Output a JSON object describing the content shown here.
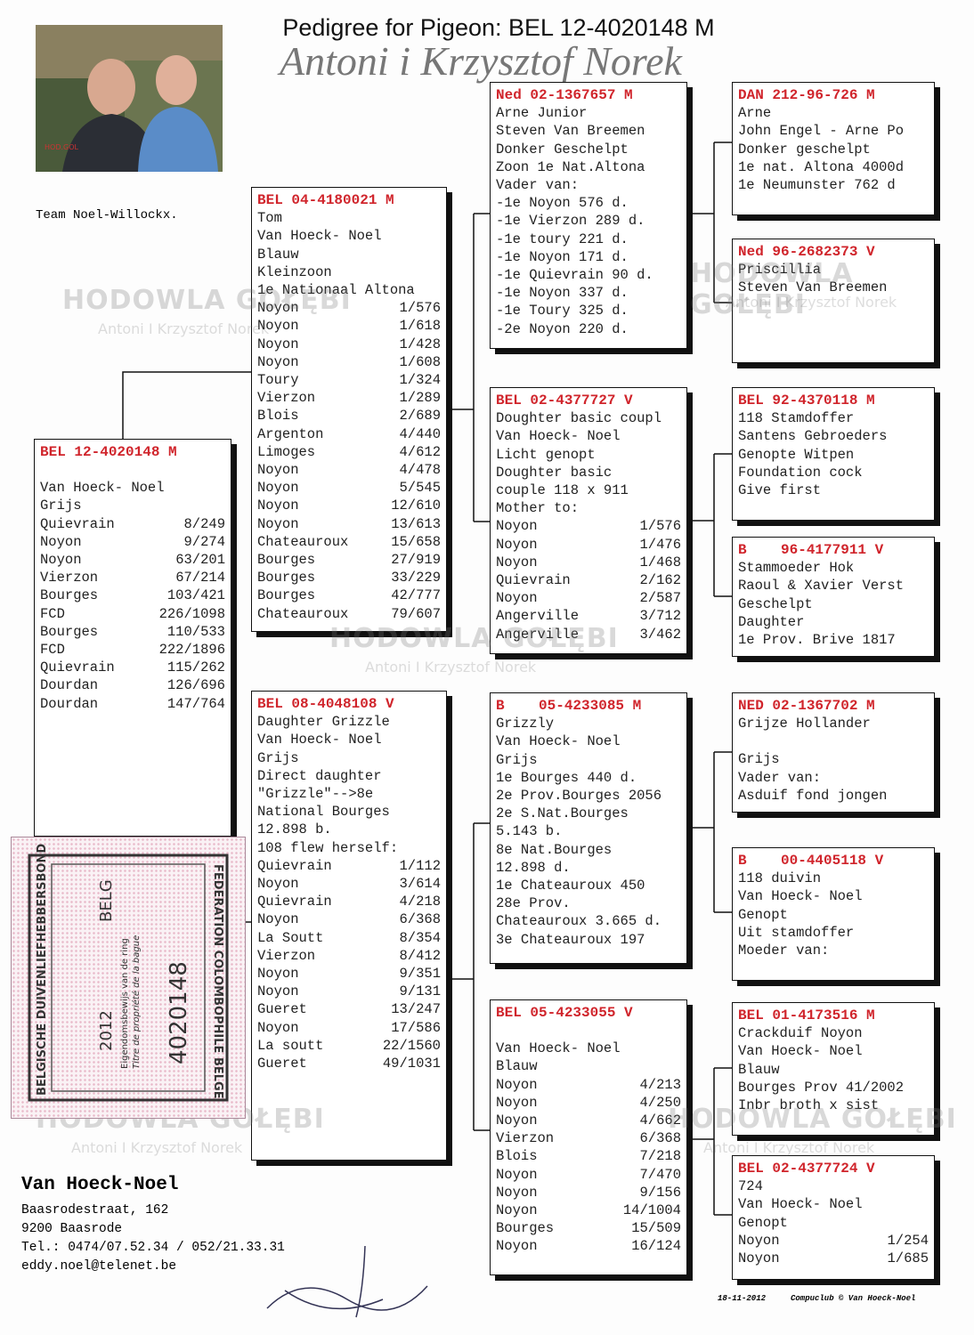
{
  "header": {
    "title": "Pedigree for Pigeon: BEL 12-4020148 M",
    "subtitle": "Antoni i Krzysztof Norek",
    "team": "Team Noel-Willockx."
  },
  "watermark": {
    "main": "HODOWLA GOŁĘBI",
    "sub": "Antoni I Krzysztof Norek"
  },
  "boxes": [
    {
      "ring": "BEL 12-4020148 M",
      "rows": [
        "Van Hoeck- Noel",
        "Grijs",
        [
          "Quievrain",
          "8/249"
        ],
        [
          "Noyon",
          "9/274"
        ],
        [
          "Noyon",
          "63/201"
        ],
        [
          "Vierzon",
          "67/214"
        ],
        [
          "Bourges",
          "103/421"
        ],
        [
          "FCD",
          "226/1098"
        ],
        [
          "Bourges",
          "110/533"
        ],
        [
          "FCD",
          "222/1896"
        ],
        [
          "Quievrain",
          "115/262"
        ],
        [
          "Dourdan",
          "126/696"
        ],
        [
          "Dourdan",
          "147/764"
        ]
      ]
    },
    {
      "ring": "BEL 04-4180021 M",
      "rows": [
        "Tom",
        "Van Hoeck- Noel",
        "Blauw",
        "Kleinzoon",
        "1e Nationaal Altona",
        [
          "Noyon",
          "1/576"
        ],
        [
          "Noyon",
          "1/618"
        ],
        [
          "Noyon",
          "1/428"
        ],
        [
          "Noyon",
          "1/608"
        ],
        [
          "Toury",
          "1/324"
        ],
        [
          "Vierzon",
          "1/289"
        ],
        [
          "Blois",
          "2/689"
        ],
        [
          "Argenton",
          "4/440"
        ],
        [
          "Limoges",
          "4/612"
        ],
        [
          "Noyon",
          "4/478"
        ],
        [
          "Noyon",
          "5/545"
        ],
        [
          "Noyon",
          "12/610"
        ],
        [
          "Noyon",
          "13/613"
        ],
        [
          "Chateauroux",
          "15/658"
        ],
        [
          "Bourges",
          "27/919"
        ],
        [
          "Bourges",
          "33/229"
        ],
        [
          "Bourges",
          "42/777"
        ],
        [
          "Chateauroux",
          "79/607"
        ]
      ]
    },
    {
      "ring": "BEL 08-4048108 V",
      "rows": [
        "Daughter Grizzle",
        "Van Hoeck- Noel",
        "Grijs",
        "Direct daughter",
        "\"Grizzle\"-->8e",
        "National Bourges",
        "12.898 b.",
        "108 flew herself:",
        [
          "Quievrain",
          "1/112"
        ],
        [
          "Noyon",
          "3/614"
        ],
        [
          "Quievrain",
          "4/218"
        ],
        [
          "Noyon",
          "6/368"
        ],
        [
          "La Soutt",
          "8/354"
        ],
        [
          "Vierzon",
          "8/412"
        ],
        [
          "Noyon",
          "9/351"
        ],
        [
          "Noyon",
          "9/131"
        ],
        [
          "Gueret",
          "13/247"
        ],
        [
          "Noyon",
          "17/586"
        ],
        [
          "La soutt",
          "22/1560"
        ],
        [
          "Gueret",
          "49/1031"
        ]
      ]
    },
    {
      "ring": "Ned 02-1367657 M",
      "rows": [
        "Arne Junior",
        "Steven Van Breemen",
        "Donker Geschelpt",
        "Zoon 1e Nat.Altona",
        "Vader van:",
        "-1e Noyon 576 d.",
        "-1e Vierzon 289 d.",
        "-1e toury 221 d.",
        "-1e Noyon 171 d.",
        "-1e Quievrain 90 d.",
        "-1e Noyon 337 d.",
        "-1e Toury 325 d.",
        "-2e Noyon 220 d."
      ]
    },
    {
      "ring": "BEL 02-4377727 V",
      "rows": [
        "Doughter basic coupl",
        "Van Hoeck- Noel",
        "Licht genopt",
        "Doughter basic",
        "couple 118 x 911",
        "Mother to:",
        [
          "Noyon",
          "1/576"
        ],
        [
          "Noyon",
          "1/476"
        ],
        [
          "Noyon",
          "1/468"
        ],
        [
          "Quievrain",
          "2/162"
        ],
        [
          "Noyon",
          "2/587"
        ],
        [
          "Angerville",
          "3/712"
        ],
        [
          "Angerville",
          "3/462"
        ]
      ]
    },
    {
      "ring": "B    05-4233085 M",
      "rows": [
        "Grizzly",
        "Van Hoeck- Noel",
        "Grijs",
        "1e Bourges 440 d.",
        "2e Prov.Bourges 2056",
        "2e S.Nat.Bourges",
        "5.143 b.",
        "8e Nat.Bourges",
        "12.898 d.",
        "1e Chateauroux 450",
        "28e Prov.",
        "Chateauroux 3.665 d.",
        "3e Chateauroux 197"
      ]
    },
    {
      "ring": "BEL 05-4233055 V",
      "rows": [
        "Van Hoeck- Noel",
        "Blauw",
        [
          "Noyon",
          "4/213"
        ],
        [
          "Noyon",
          "4/250"
        ],
        [
          "Noyon",
          "4/662"
        ],
        [
          "Vierzon",
          "6/368"
        ],
        [
          "Blois",
          "7/218"
        ],
        [
          "Noyon",
          "7/470"
        ],
        [
          "Noyon",
          "9/156"
        ],
        [
          "Noyon",
          "14/1004"
        ],
        [
          "Bourges",
          "15/509"
        ],
        [
          "Noyon",
          "16/124"
        ]
      ]
    },
    {
      "ring": "DAN 212-96-726 M",
      "rows": [
        "Arne",
        "John Engel - Arne Po",
        "Donker geschelpt",
        "1e nat. Altona 4000d",
        "1e Neumunster 762 d"
      ]
    },
    {
      "ring": "Ned 96-2682373 V",
      "rows": [
        "Priscillia",
        "Steven Van Breemen"
      ]
    },
    {
      "ring": "BEL 92-4370118 M",
      "rows": [
        "118 Stamdoffer",
        "Santens Gebroeders",
        "Genopte Witpen",
        "Foundation cock",
        "Give first"
      ]
    },
    {
      "ring": "B    96-4177911 V",
      "rows": [
        "Stammoeder Hok",
        "Raoul & Xavier Verst",
        "Geschelpt",
        "Daughter",
        "1e Prov. Brive 1817"
      ]
    },
    {
      "ring": "NED 02-1367702 M",
      "rows": [
        "Grijze Hollander",
        "Grijs",
        "Vader van:",
        "Asduif fond jongen"
      ]
    },
    {
      "ring": "B    00-4405118 V",
      "rows": [
        "118 duivin",
        "Van Hoeck- Noel",
        "Genopt",
        "Uit stamdoffer",
        "Moeder van:"
      ]
    },
    {
      "ring": "BEL 01-4173516 M",
      "rows": [
        "Crackduif Noyon",
        "Van Hoeck- Noel",
        "Blauw",
        "Bourges Prov 41/2002",
        "Inbr broth x sist"
      ]
    },
    {
      "ring": "BEL 02-4377724 V",
      "rows": [
        "724",
        "Van Hoeck- Noel",
        "Genopt",
        [
          "Noyon",
          "1/254"
        ],
        [
          "Noyon",
          "1/685"
        ]
      ]
    }
  ],
  "stamp": {
    "left": "BELGISCHE DUIVENLIEFHEBBERSBOND",
    "right": "FEDERATION COLOMBOPHILE BELGE",
    "year": "2012",
    "country": "BELG",
    "number": "4020148",
    "note1": "Eigendomsbewijs van de ring",
    "note2": "Titre de propriété de la bague"
  },
  "owner": {
    "name": "Van Hoeck-Noel",
    "address": [
      "Baasrodestraat, 162",
      "9200  Baasrode",
      "Tel.: 0474/07.52.34 / 052/21.33.31",
      "eddy.noel@telenet.be"
    ]
  },
  "footer": {
    "date": "18-11-2012",
    "credit": "Compuclub © Van Hoeck-Noel"
  }
}
